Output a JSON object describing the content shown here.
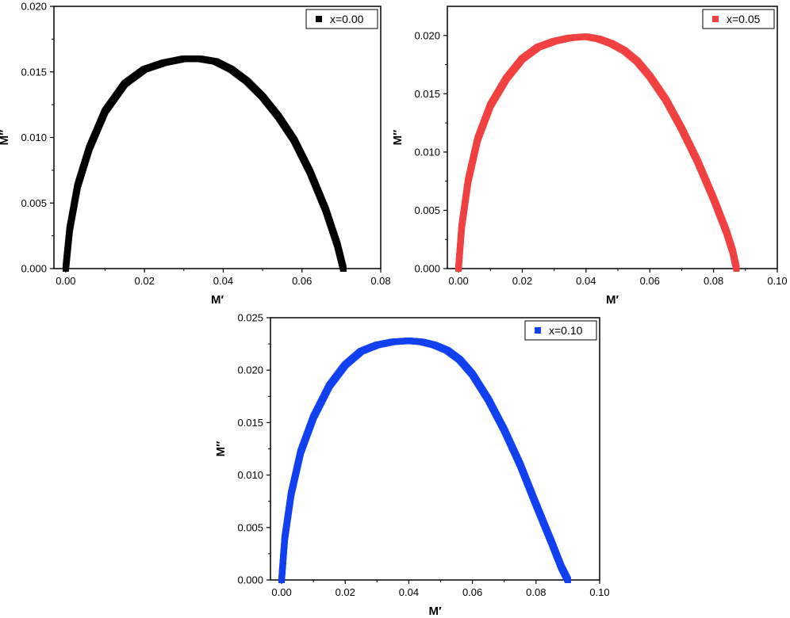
{
  "chart_data": [
    {
      "type": "scatter",
      "xlabel": "M′",
      "ylabel": "M″",
      "xlim": [
        -0.003,
        0.08
      ],
      "ylim": [
        0,
        0.02
      ],
      "xticks": [
        "0.00",
        "0.02",
        "0.04",
        "0.06",
        "0.08"
      ],
      "yticks": [
        "0.000",
        "0.005",
        "0.010",
        "0.015",
        "0.020"
      ],
      "legend_position": "top-right",
      "grid": false,
      "series": [
        {
          "name": "x=0.00",
          "color": "#000000",
          "marker": "square",
          "x": [
            0.0,
            0.001,
            0.003,
            0.006,
            0.01,
            0.015,
            0.02,
            0.025,
            0.03,
            0.034,
            0.038,
            0.042,
            0.046,
            0.05,
            0.054,
            0.058,
            0.062,
            0.066,
            0.069,
            0.0705
          ],
          "y": [
            0.0,
            0.003,
            0.0063,
            0.0092,
            0.012,
            0.0141,
            0.0152,
            0.0157,
            0.016,
            0.016,
            0.0158,
            0.0152,
            0.0143,
            0.0131,
            0.0116,
            0.0098,
            0.0074,
            0.0045,
            0.0018,
            0.0
          ]
        }
      ]
    },
    {
      "type": "scatter",
      "xlabel": "M′",
      "ylabel": "M″",
      "xlim": [
        -0.0035,
        0.1
      ],
      "ylim": [
        0,
        0.0225
      ],
      "xticks": [
        "0.00",
        "0.02",
        "0.04",
        "0.06",
        "0.08",
        "0.10"
      ],
      "yticks": [
        "0.000",
        "0.005",
        "0.010",
        "0.015",
        "0.020"
      ],
      "legend_position": "top-right",
      "grid": false,
      "series": [
        {
          "name": "x=0.05",
          "color": "#f04040",
          "marker": "square",
          "x": [
            0.0,
            0.001,
            0.003,
            0.006,
            0.01,
            0.015,
            0.02,
            0.025,
            0.03,
            0.035,
            0.04,
            0.044,
            0.048,
            0.052,
            0.056,
            0.06,
            0.065,
            0.07,
            0.075,
            0.08,
            0.084,
            0.086,
            0.0872
          ],
          "y": [
            0.0,
            0.0036,
            0.0075,
            0.0111,
            0.014,
            0.0163,
            0.018,
            0.019,
            0.0195,
            0.0198,
            0.0199,
            0.0197,
            0.0193,
            0.0187,
            0.0178,
            0.0165,
            0.0145,
            0.012,
            0.0092,
            0.006,
            0.0032,
            0.0015,
            0.0
          ]
        }
      ]
    },
    {
      "type": "scatter",
      "xlabel": "M′",
      "ylabel": "M″",
      "xlim": [
        -0.0035,
        0.1
      ],
      "ylim": [
        0,
        0.025
      ],
      "xticks": [
        "0.00",
        "0.02",
        "0.04",
        "0.06",
        "0.08",
        "0.10"
      ],
      "yticks": [
        "0.000",
        "0.005",
        "0.010",
        "0.015",
        "0.020",
        "0.025"
      ],
      "legend_position": "top-right",
      "grid": false,
      "series": [
        {
          "name": "x=0.10",
          "color": "#1040f0",
          "marker": "square",
          "x": [
            0.0,
            0.001,
            0.003,
            0.006,
            0.01,
            0.015,
            0.02,
            0.025,
            0.03,
            0.035,
            0.04,
            0.044,
            0.048,
            0.052,
            0.056,
            0.06,
            0.065,
            0.07,
            0.075,
            0.08,
            0.085,
            0.088,
            0.09
          ],
          "y": [
            0.0,
            0.004,
            0.0082,
            0.0122,
            0.0155,
            0.0185,
            0.0205,
            0.0218,
            0.0224,
            0.0227,
            0.0228,
            0.0227,
            0.0224,
            0.0219,
            0.021,
            0.0196,
            0.0172,
            0.0143,
            0.011,
            0.0072,
            0.0035,
            0.0012,
            0.0
          ]
        }
      ]
    }
  ]
}
